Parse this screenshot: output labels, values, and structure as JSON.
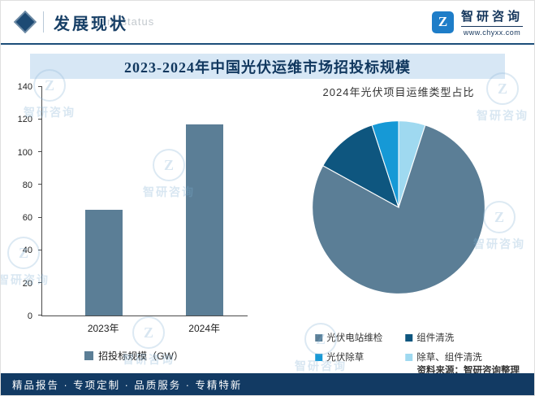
{
  "header": {
    "section_title": "发展现状",
    "ghost_text": "ment status",
    "brand": "智研咨询",
    "brand_glyph": "Z",
    "website": "www.chyxx.com"
  },
  "chart_title": "2023-2024年中国光伏运维市场招投标规模",
  "chart_data": [
    {
      "type": "bar",
      "categories": [
        "2023年",
        "2024年"
      ],
      "values": [
        65,
        117
      ],
      "legend": "招投标规模（GW）",
      "ylabel": "",
      "xlabel": "",
      "ylim": [
        0,
        140
      ],
      "yticks": [
        0,
        20,
        40,
        60,
        80,
        100,
        120,
        140
      ],
      "bar_color": "#5b7e96",
      "grid": false,
      "legend_position": "bottom"
    },
    {
      "type": "pie",
      "title": "2024年光伏项目运维类型占比",
      "slices": [
        {
          "label": "光伏电站维检",
          "value": 78,
          "color": "#5b7e96"
        },
        {
          "label": "组件清洗",
          "value": 12,
          "color": "#0e567f"
        },
        {
          "label": "光伏除草",
          "value": 5,
          "color": "#1699d6"
        },
        {
          "label": "除草、组件清洗",
          "value": 5,
          "color": "#9fd9f0"
        }
      ],
      "draw_order": [
        3,
        0,
        1,
        2
      ],
      "legend_position": "bottom"
    }
  ],
  "source_note": "资料来源：智研咨询整理",
  "footer_slogan": "精品报告 · 专项定制 · 品质服务 · 专精特新"
}
